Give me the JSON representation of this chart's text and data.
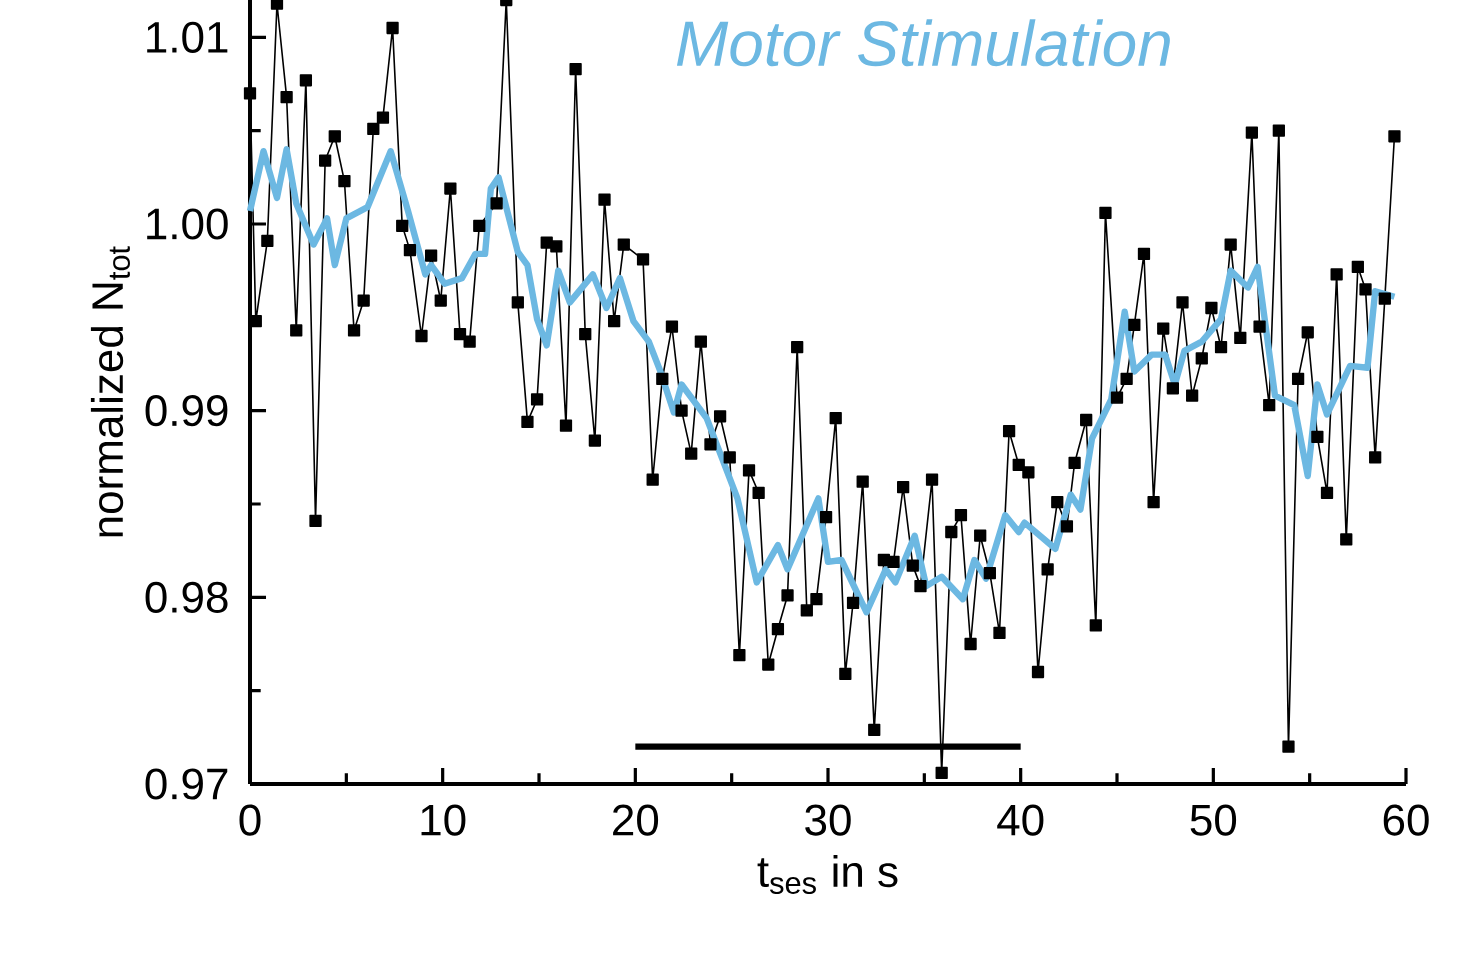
{
  "chart_data": {
    "type": "line",
    "title": "Motor Stimulation",
    "xlabel": "t$_{ses}$ in s",
    "ylabel": "normalized  N$_{tot}$",
    "xlim": [
      0,
      60
    ],
    "ylim": [
      0.97,
      1.012
    ],
    "xticks": [
      0,
      10,
      20,
      30,
      40,
      50,
      60
    ],
    "yticks": [
      0.97,
      0.98,
      0.99,
      {
        "value": 1,
        "label": "1.00"
      },
      1.01
    ],
    "grid": false,
    "line_style": "solid",
    "series": [
      {
        "color": "#000000",
        "marker": "none",
        "x": [
          20,
          40
        ],
        "values": [
          0.972,
          0.972
        ]
      },
      {
        "color": "#000000",
        "marker": "square",
        "x": [
          0,
          0.3,
          0.9,
          1.4,
          1.9,
          2.4,
          2.9,
          3.4,
          3.9,
          4.4,
          4.9,
          5.4,
          5.9,
          6.4,
          6.9,
          7.4,
          7.9,
          8.3,
          8.9,
          9.4,
          9.9,
          10.4,
          10.9,
          11.4,
          11.9,
          12.8,
          13.3,
          13.9,
          14.4,
          14.9,
          15.4,
          15.9,
          16.4,
          16.9,
          17.4,
          17.9,
          18.4,
          18.9,
          19.4,
          20.4,
          20.9,
          21.4,
          21.9,
          22.4,
          22.9,
          23.4,
          23.9,
          24.4,
          24.9,
          25.4,
          25.9,
          26.4,
          26.9,
          27.4,
          27.9,
          28.4,
          28.9,
          29.4,
          29.9,
          30.4,
          30.9,
          31.3,
          31.8,
          32.4,
          32.9,
          33.4,
          33.9,
          34.4,
          34.8,
          35.4,
          35.9,
          36.4,
          36.9,
          37.4,
          37.9,
          38.4,
          38.9,
          39.4,
          39.9,
          40.4,
          40.9,
          41.4,
          41.9,
          42.4,
          42.8,
          43.4,
          43.9,
          44.4,
          45.0,
          45.5,
          45.9,
          46.4,
          46.9,
          47.4,
          47.9,
          48.4,
          48.9,
          49.4,
          49.9,
          50.4,
          50.9,
          51.4,
          52.0,
          52.4,
          52.9,
          53.4,
          53.9,
          54.4,
          54.9,
          55.4,
          55.9,
          56.4,
          56.9,
          57.5,
          57.9,
          58.4,
          58.9,
          59.4
        ],
        "values": [
          1.007,
          0.9948,
          0.9991,
          1.0118,
          1.0068,
          0.9943,
          1.0077,
          0.9841,
          1.0034,
          1.0047,
          1.0023,
          0.9943,
          0.9959,
          1.0051,
          1.0057,
          1.0105,
          0.9999,
          0.9986,
          0.994,
          0.9983,
          0.9959,
          1.0019,
          0.9941,
          0.9937,
          0.9999,
          1.0011,
          1.012,
          0.9958,
          0.9894,
          0.9906,
          0.999,
          0.9988,
          0.9892,
          1.0083,
          0.9941,
          0.9884,
          1.0013,
          0.9948,
          0.9989,
          0.9981,
          0.9863,
          0.9917,
          0.9945,
          0.99,
          0.9877,
          0.9937,
          0.9882,
          0.9897,
          0.9875,
          0.9769,
          0.9868,
          0.9856,
          0.9764,
          0.9783,
          0.9801,
          0.9934,
          0.9793,
          0.9799,
          0.9843,
          0.9896,
          0.9759,
          0.9797,
          0.9862,
          0.9729,
          0.982,
          0.9819,
          0.9859,
          0.9817,
          0.9806,
          0.9863,
          0.9706,
          0.9835,
          0.9844,
          0.9775,
          0.9833,
          0.9813,
          0.9781,
          0.9889,
          0.9871,
          0.9867,
          0.976,
          0.9815,
          0.9851,
          0.9838,
          0.9872,
          0.9895,
          0.9785,
          1.0006,
          0.9907,
          0.9917,
          0.9946,
          0.9984,
          0.9851,
          0.9944,
          0.9912,
          0.9958,
          0.9908,
          0.9928,
          0.9955,
          0.9934,
          0.9989,
          0.9939,
          1.0049,
          0.9945,
          0.9903,
          1.005,
          0.972,
          0.9917,
          0.9942,
          0.9886,
          0.9856,
          0.9973,
          0.9831,
          0.9977,
          0.9965,
          0.9875,
          0.996,
          1.0047
        ]
      },
      {
        "color": "#6cb8e2",
        "marker": "none",
        "x": [
          0,
          0.7,
          1.4,
          1.9,
          2.4,
          3.3,
          4.0,
          4.4,
          5.0,
          6.1,
          7.3,
          8.2,
          9.1,
          9.4,
          10.1,
          11.0,
          11.7,
          12.2,
          12.5,
          12.9,
          13.9,
          14.4,
          14.9,
          15.4,
          16.0,
          16.6,
          17.8,
          18.5,
          19.2,
          19.9,
          20.7,
          21.3,
          22.0,
          22.4,
          23.7,
          25.3,
          26.3,
          27.4,
          27.9,
          29.5,
          30.0,
          30.7,
          32.0,
          33.0,
          33.5,
          34.5,
          35.1,
          35.9,
          37.0,
          37.6,
          38.2,
          39.2,
          39.9,
          40.2,
          41.8,
          42.6,
          43.1,
          43.7,
          44.7,
          45.4,
          45.9,
          46.8,
          47.5,
          48.0,
          48.5,
          49.4,
          50.4,
          50.9,
          51.8,
          52.3,
          53.2,
          54.2,
          54.9,
          55.4,
          55.9,
          57.1,
          58.0,
          58.4,
          59.4
        ],
        "values": [
          1.0007,
          1.0039,
          1.0014,
          1.004,
          1.0011,
          0.9989,
          1.0003,
          0.9978,
          1.0003,
          1.0009,
          1.0039,
          1.0007,
          0.9973,
          0.9978,
          0.9968,
          0.9971,
          0.9984,
          0.9984,
          1.0019,
          1.0025,
          0.9985,
          0.9978,
          0.9949,
          0.9935,
          0.9975,
          0.9958,
          0.9973,
          0.9955,
          0.9971,
          0.9948,
          0.9937,
          0.9921,
          0.9899,
          0.9914,
          0.9896,
          0.9853,
          0.9808,
          0.9828,
          0.9815,
          0.9853,
          0.9819,
          0.982,
          0.9792,
          0.9815,
          0.9808,
          0.9833,
          0.9806,
          0.9811,
          0.9799,
          0.982,
          0.981,
          0.9844,
          0.9835,
          0.984,
          0.9826,
          0.9855,
          0.9847,
          0.9885,
          0.9906,
          0.9953,
          0.9921,
          0.993,
          0.993,
          0.9914,
          0.9932,
          0.9937,
          0.9949,
          0.9975,
          0.9966,
          0.9977,
          0.9908,
          0.9903,
          0.9865,
          0.9914,
          0.9898,
          0.9924,
          0.9923,
          0.9964,
          0.9961
        ]
      }
    ]
  }
}
